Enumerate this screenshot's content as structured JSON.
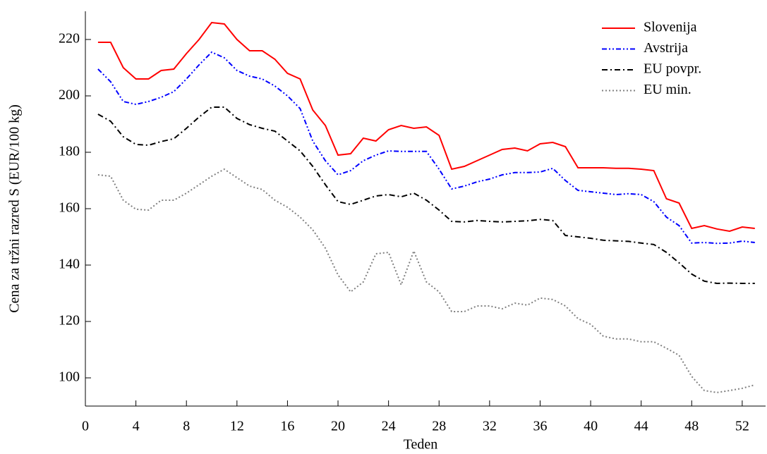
{
  "chart_data": {
    "type": "line",
    "xlabel": "Teden",
    "ylabel": "Cena za tržni razred S (EUR/100 kg)",
    "x": [
      1,
      2,
      3,
      4,
      5,
      6,
      7,
      8,
      9,
      10,
      11,
      12,
      13,
      14,
      15,
      16,
      17,
      18,
      19,
      20,
      21,
      22,
      23,
      24,
      25,
      26,
      27,
      28,
      29,
      30,
      31,
      32,
      33,
      34,
      35,
      36,
      37,
      38,
      39,
      40,
      41,
      42,
      43,
      44,
      45,
      46,
      47,
      48,
      49,
      50,
      51,
      52,
      53
    ],
    "series": [
      {
        "name": "Slovenija",
        "color": "#ff0000",
        "linestyle": "solid",
        "values": [
          219,
          219,
          210,
          206,
          206,
          209,
          209.5,
          215,
          220,
          226,
          225.5,
          220,
          216,
          216,
          213,
          208,
          206,
          195,
          189.5,
          179,
          179.5,
          185,
          184,
          188,
          189.5,
          188.5,
          189,
          186,
          174,
          175,
          177,
          179,
          181,
          181.5,
          180.5,
          183,
          183.5,
          182,
          174.5,
          174.5,
          174.5,
          174.3,
          174.3,
          174,
          173.5,
          163.5,
          162,
          153,
          154,
          152.8,
          152,
          153.5,
          153
        ]
      },
      {
        "name": "Avstrija",
        "color": "#0000ff",
        "linestyle": "dashdotdot",
        "values": [
          209.5,
          205,
          198,
          197,
          198,
          199.5,
          201.5,
          206,
          211,
          215.5,
          213.5,
          209,
          207,
          206,
          203.5,
          200,
          195.5,
          184,
          177,
          172,
          173.5,
          177,
          179,
          180.5,
          180.3,
          180.3,
          180.3,
          174,
          167,
          168,
          169.5,
          170.5,
          172,
          172.8,
          172.8,
          173,
          174.3,
          170,
          166.5,
          166,
          165.5,
          165,
          165.3,
          165,
          162.5,
          157,
          154,
          147.8,
          148,
          147.7,
          147.8,
          148.5,
          148
        ]
      },
      {
        "name": "EU povpr.",
        "color": "#000000",
        "linestyle": "dashdot",
        "values": [
          193.5,
          191,
          185.5,
          182.8,
          182.5,
          183.8,
          184.8,
          188.5,
          192.5,
          196,
          196,
          192,
          189.8,
          188.5,
          187.5,
          184,
          180.5,
          175,
          168.5,
          162.5,
          161.5,
          163,
          164.5,
          165,
          164.2,
          165.5,
          163,
          159.5,
          155.5,
          155.3,
          155.8,
          155.5,
          155.3,
          155.5,
          155.7,
          156.2,
          155.8,
          150.5,
          150,
          149.5,
          148.8,
          148.6,
          148.4,
          147.8,
          147.3,
          144.5,
          140.8,
          136.8,
          134.3,
          133.5,
          133.6,
          133.5,
          133.5
        ]
      },
      {
        "name": "EU min.",
        "color": "#808080",
        "linestyle": "dotted",
        "values": [
          172,
          171.5,
          163,
          159.8,
          159.5,
          163,
          163,
          165.5,
          168.5,
          171.5,
          174,
          171,
          168,
          166.8,
          163,
          160.5,
          157,
          152.5,
          146,
          136.5,
          130.5,
          134,
          144,
          144.5,
          133,
          145,
          134,
          130.5,
          123.5,
          123.5,
          125.5,
          125.5,
          124.5,
          126.5,
          125.8,
          128.3,
          127.8,
          125.5,
          121,
          119,
          114.8,
          113.8,
          113.8,
          112.8,
          112.8,
          110.5,
          108,
          100.5,
          95.5,
          94.8,
          95.5,
          96.3,
          97.5
        ]
      }
    ],
    "xlim": [
      0,
      53.85
    ],
    "xticks": [
      0,
      4,
      8,
      12,
      16,
      20,
      24,
      28,
      32,
      36,
      40,
      44,
      48,
      52
    ],
    "ylim": [
      90,
      230
    ],
    "yticks": [
      100,
      120,
      140,
      160,
      180,
      200,
      220
    ],
    "legend": "top-right"
  }
}
